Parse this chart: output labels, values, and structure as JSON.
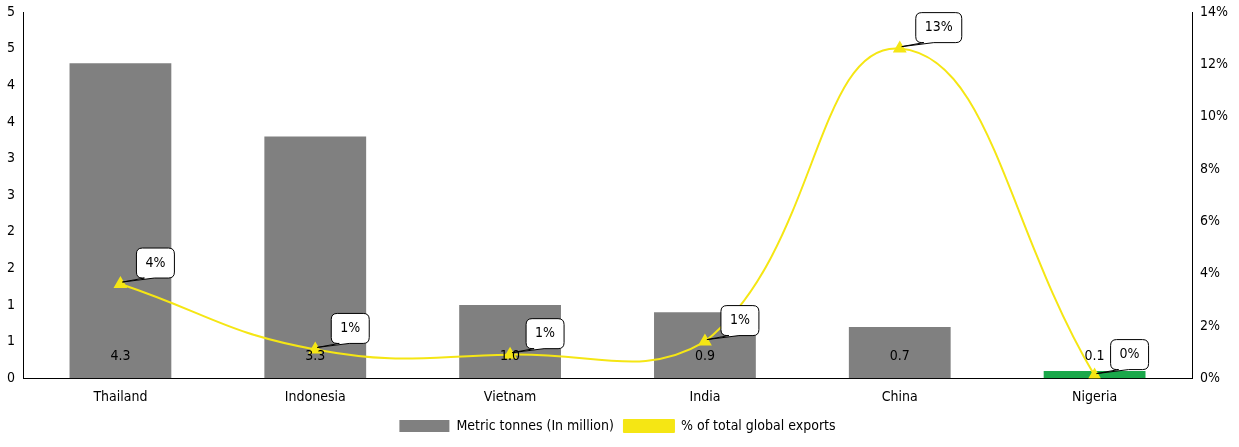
{
  "chart_data": {
    "type": "bar",
    "categories": [
      "Thailand",
      "Indonesia",
      "Vietnam",
      "India",
      "China",
      "Nigeria"
    ],
    "series": [
      {
        "name": "Metric tonnes (In million)",
        "colors": [
          "#808080",
          "#808080",
          "#808080",
          "#808080",
          "#808080",
          "#1aa84a"
        ],
        "values": [
          4.3,
          3.3,
          1.0,
          0.9,
          0.7,
          0.1
        ],
        "value_labels": [
          "4.3",
          "3.3",
          "1.0",
          "0.9",
          "0.7",
          "0.1"
        ]
      },
      {
        "name": "% of total global exports",
        "type": "line",
        "axis": "y2",
        "color": "#f5e614",
        "marker": "triangle",
        "values": [
          3.6,
          1.1,
          0.9,
          1.4,
          12.6,
          0.1
        ],
        "value_labels": [
          "4%",
          "1%",
          "1%",
          "1%",
          "13%",
          "0%"
        ]
      }
    ],
    "ylim": [
      0,
      5
    ],
    "yticks": [
      0,
      {
        "value": 0.5,
        "label": "1"
      },
      1,
      {
        "value": 1.5,
        "label": "2"
      },
      2,
      {
        "value": 2.5,
        "label": "3"
      },
      3,
      {
        "value": 3.5,
        "label": "4"
      },
      4,
      {
        "value": 4.5,
        "label": "5"
      },
      5
    ],
    "y2lim": [
      0,
      14
    ],
    "y2ticks": [
      {
        "value": 0,
        "label": "0%"
      },
      {
        "value": 2,
        "label": "2%"
      },
      {
        "value": 4,
        "label": "4%"
      },
      {
        "value": 6,
        "label": "6%"
      },
      {
        "value": 8,
        "label": "8%"
      },
      {
        "value": 10,
        "label": "10%"
      },
      {
        "value": 12,
        "label": "12%"
      },
      {
        "value": 14,
        "label": "14%"
      }
    ],
    "legend": "bottom",
    "grid": false
  }
}
